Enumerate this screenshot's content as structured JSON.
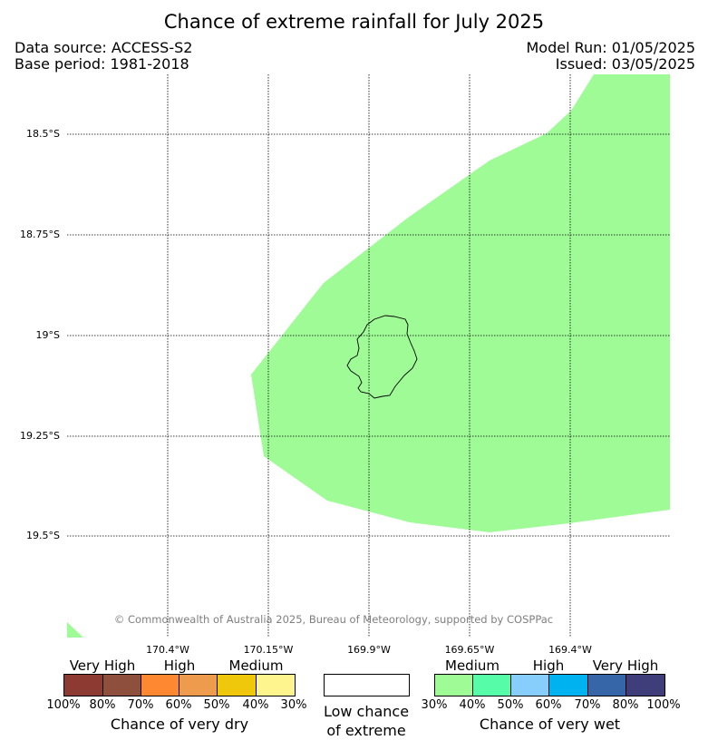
{
  "header": {
    "title": "Chance of extreme rainfall for July 2025",
    "data_source": "Data source: ACCESS-S2",
    "base_period": "Base period: 1981-2018",
    "model_run": "Model Run: 01/05/2025",
    "issued": "Issued: 03/05/2025"
  },
  "map": {
    "lat_labels": [
      "18.5°S",
      "18.75°S",
      "19°S",
      "19.25°S",
      "19.5°S"
    ],
    "lon_labels": [
      "170.4°W",
      "170.15°W",
      "169.9°W",
      "169.65°W",
      "169.4°W"
    ],
    "copyright": "© Commonwealth of Australia 2025, Bureau of Meteorology, supported by COSPPac",
    "region_color": "#9efb96",
    "region_category": "Medium"
  },
  "legend": {
    "dry": {
      "categories": [
        "Very High",
        "High",
        "Medium"
      ],
      "colors": [
        "#8c3a32",
        "#8e4f3c",
        "#fe8832",
        "#ee9b4d",
        "#efc80c",
        "#fef58e"
      ],
      "ticks": [
        "100%",
        "80%",
        "70%",
        "60%",
        "50%",
        "40%",
        "30%"
      ],
      "caption": "Chance of very dry"
    },
    "neutral": {
      "color": "#ffffff",
      "caption_line1": "Low chance",
      "caption_line2": "of extreme"
    },
    "wet": {
      "categories": [
        "Medium",
        "High",
        "Very High"
      ],
      "colors": [
        "#9efb96",
        "#57fca8",
        "#88cefc",
        "#00b2ef",
        "#3665a8",
        "#3f3e7a"
      ],
      "ticks": [
        "30%",
        "40%",
        "50%",
        "60%",
        "70%",
        "80%",
        "100%"
      ],
      "caption": "Chance of very wet"
    }
  }
}
